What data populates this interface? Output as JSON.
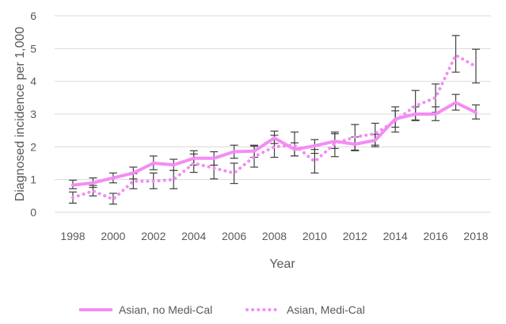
{
  "chart_data": {
    "type": "line",
    "title": "",
    "xlabel": "Year",
    "ylabel": "Diagnosed incidence per 1,000",
    "ylim": [
      0,
      6
    ],
    "xlim": [
      1998,
      2018
    ],
    "yticks": [
      "0",
      "1",
      "2",
      "3",
      "4",
      "5",
      "6"
    ],
    "xticks": [
      "1998",
      "2000",
      "2002",
      "2004",
      "2006",
      "2008",
      "2010",
      "2012",
      "2014",
      "2016",
      "2018"
    ],
    "grid": "horizontal",
    "legend_position": "bottom",
    "x": [
      1998,
      1999,
      2000,
      2001,
      2002,
      2003,
      2004,
      2005,
      2006,
      2007,
      2008,
      2009,
      2010,
      2011,
      2012,
      2013,
      2014,
      2015,
      2016,
      2017,
      2018
    ],
    "series": [
      {
        "name": "Asian, no Medi-Cal",
        "style": "solid",
        "color": "#f48cf4",
        "values": [
          0.83,
          0.9,
          1.05,
          1.2,
          1.5,
          1.45,
          1.65,
          1.65,
          1.85,
          1.87,
          2.27,
          1.92,
          2.03,
          2.17,
          2.08,
          2.2,
          2.85,
          3.0,
          3.0,
          3.35,
          3.05
        ],
        "error_low": [
          0.72,
          0.76,
          0.9,
          1.02,
          1.3,
          1.28,
          1.44,
          1.44,
          1.65,
          1.68,
          2.1,
          1.72,
          1.8,
          1.95,
          1.88,
          2.0,
          2.6,
          2.8,
          2.8,
          3.12,
          2.85
        ],
        "error_high": [
          0.98,
          1.05,
          1.2,
          1.38,
          1.72,
          1.62,
          1.88,
          1.85,
          2.05,
          2.05,
          2.48,
          2.12,
          2.22,
          2.4,
          2.3,
          2.38,
          3.1,
          3.22,
          3.22,
          3.6,
          3.28
        ]
      },
      {
        "name": "Asian, Medi-Cal",
        "style": "dotted",
        "color": "#f48cf4",
        "values": [
          0.45,
          0.65,
          0.4,
          0.95,
          0.95,
          1.0,
          1.5,
          1.35,
          1.2,
          1.7,
          2.0,
          2.05,
          1.55,
          2.1,
          2.3,
          2.4,
          2.8,
          3.25,
          3.5,
          4.8,
          4.45
        ],
        "error_low": [
          0.28,
          0.5,
          0.25,
          0.72,
          0.72,
          0.72,
          1.22,
          1.02,
          0.88,
          1.38,
          1.68,
          1.72,
          1.2,
          1.7,
          1.9,
          2.05,
          2.45,
          2.82,
          3.05,
          4.28,
          3.95
        ],
        "error_high": [
          0.62,
          0.82,
          0.58,
          1.18,
          1.2,
          1.28,
          1.78,
          1.65,
          1.5,
          2.02,
          2.35,
          2.45,
          1.92,
          2.45,
          2.68,
          2.72,
          3.22,
          3.72,
          3.92,
          5.4,
          4.98
        ]
      }
    ]
  }
}
